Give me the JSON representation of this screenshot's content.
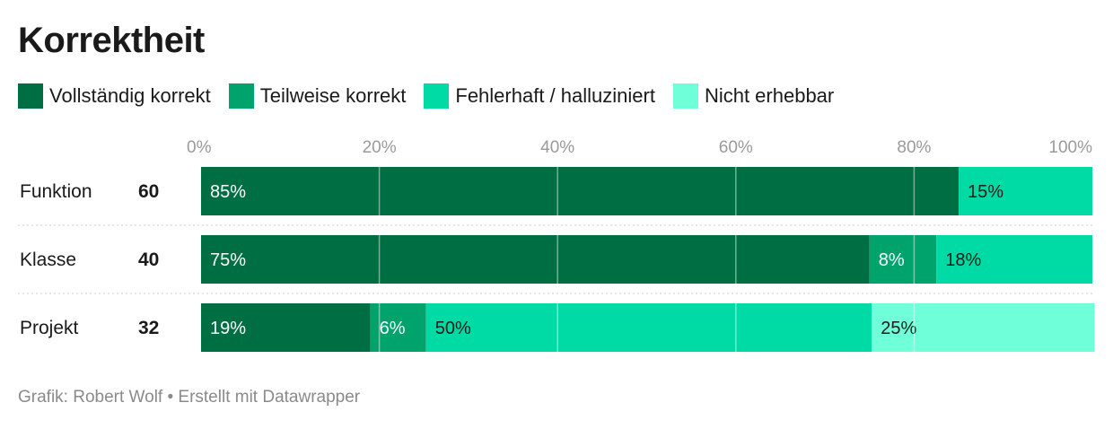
{
  "chart_data": {
    "type": "bar",
    "orientation": "horizontal",
    "stacked": true,
    "title": "Korrektheit",
    "categories": [
      "Funktion",
      "Klasse",
      "Projekt"
    ],
    "counts": [
      "60",
      "40",
      "32"
    ],
    "series": [
      {
        "name": "Vollständig korrekt",
        "color": "#006e43",
        "values": [
          85,
          75,
          19
        ],
        "labels": [
          "85%",
          "75%",
          "19%"
        ]
      },
      {
        "name": "Teilweise korrekt",
        "color": "#00a36c",
        "values": [
          0,
          7.5,
          6.25
        ],
        "labels": [
          "",
          "8%",
          "6%"
        ]
      },
      {
        "name": "Fehlerhaft / halluziniert",
        "color": "#00dba6",
        "values": [
          15,
          17.5,
          50
        ],
        "labels": [
          "15%",
          "18%",
          "50%"
        ]
      },
      {
        "name": "Nicht erhebbar",
        "color": "#6fffd9",
        "values": [
          0,
          0,
          25
        ],
        "labels": [
          "",
          "",
          "25%"
        ]
      }
    ],
    "xlim": [
      0,
      100
    ],
    "x_ticks": [
      0,
      20,
      40,
      60,
      80,
      100
    ],
    "x_tick_labels": [
      "0%",
      "20%",
      "40%",
      "60%",
      "80%",
      "100%"
    ],
    "grid": true,
    "legend_position": "top-left"
  },
  "source": "Grafik: Robert Wolf • Erstellt mit Datawrapper"
}
